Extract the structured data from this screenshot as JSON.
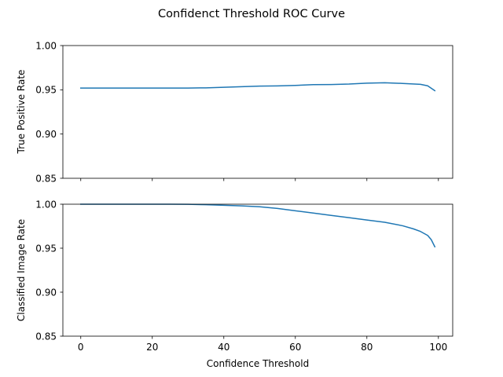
{
  "chart_data": {
    "type": "line",
    "title": "Confidenct Threshold ROC Curve",
    "xlabel": "Confidence Threshold",
    "xlim": [
      -5,
      104
    ],
    "x_ticks": [
      "0",
      "20",
      "40",
      "60",
      "80",
      "100"
    ],
    "x_tick_values": [
      0,
      20,
      40,
      60,
      80,
      100
    ],
    "colors": {
      "series": "#1f77b4",
      "axes": "#000000",
      "background": "#ffffff"
    },
    "subplots": [
      {
        "ylabel": "True Positive Rate",
        "ylim": [
          0.85,
          1.0
        ],
        "y_ticks": [
          "1.00",
          "0.95",
          "0.90",
          "0.85"
        ],
        "y_tick_values": [
          1.0,
          0.95,
          0.9,
          0.85
        ],
        "show_x_tick_labels": false,
        "series": [
          {
            "x": [
              0,
              5,
              10,
              15,
              20,
              25,
              30,
              35,
              40,
              45,
              50,
              55,
              60,
              65,
              70,
              75,
              80,
              85,
              90,
              95,
              97,
              99
            ],
            "y": [
              0.952,
              0.952,
              0.952,
              0.952,
              0.952,
              0.952,
              0.952,
              0.9522,
              0.9528,
              0.9535,
              0.9542,
              0.9544,
              0.955,
              0.9558,
              0.956,
              0.9565,
              0.9575,
              0.958,
              0.9572,
              0.9562,
              0.9545,
              0.949
            ]
          }
        ]
      },
      {
        "ylabel": "Classified Image Rate",
        "ylim": [
          0.85,
          1.0
        ],
        "y_ticks": [
          "1.00",
          "0.95",
          "0.90",
          "0.85"
        ],
        "y_tick_values": [
          1.0,
          0.95,
          0.9,
          0.85
        ],
        "show_x_tick_labels": true,
        "series": [
          {
            "x": [
              0,
              5,
              10,
              15,
              20,
              25,
              30,
              35,
              40,
              45,
              50,
              55,
              60,
              65,
              70,
              75,
              80,
              85,
              90,
              93,
              95,
              97,
              98,
              99
            ],
            "y": [
              1.0,
              1.0,
              1.0,
              1.0,
              1.0,
              1.0,
              0.9999,
              0.9994,
              0.9988,
              0.9981,
              0.9971,
              0.9952,
              0.9925,
              0.99,
              0.9873,
              0.9847,
              0.982,
              0.9795,
              0.9755,
              0.972,
              0.969,
              0.9645,
              0.9597,
              0.9516
            ]
          }
        ]
      }
    ]
  }
}
